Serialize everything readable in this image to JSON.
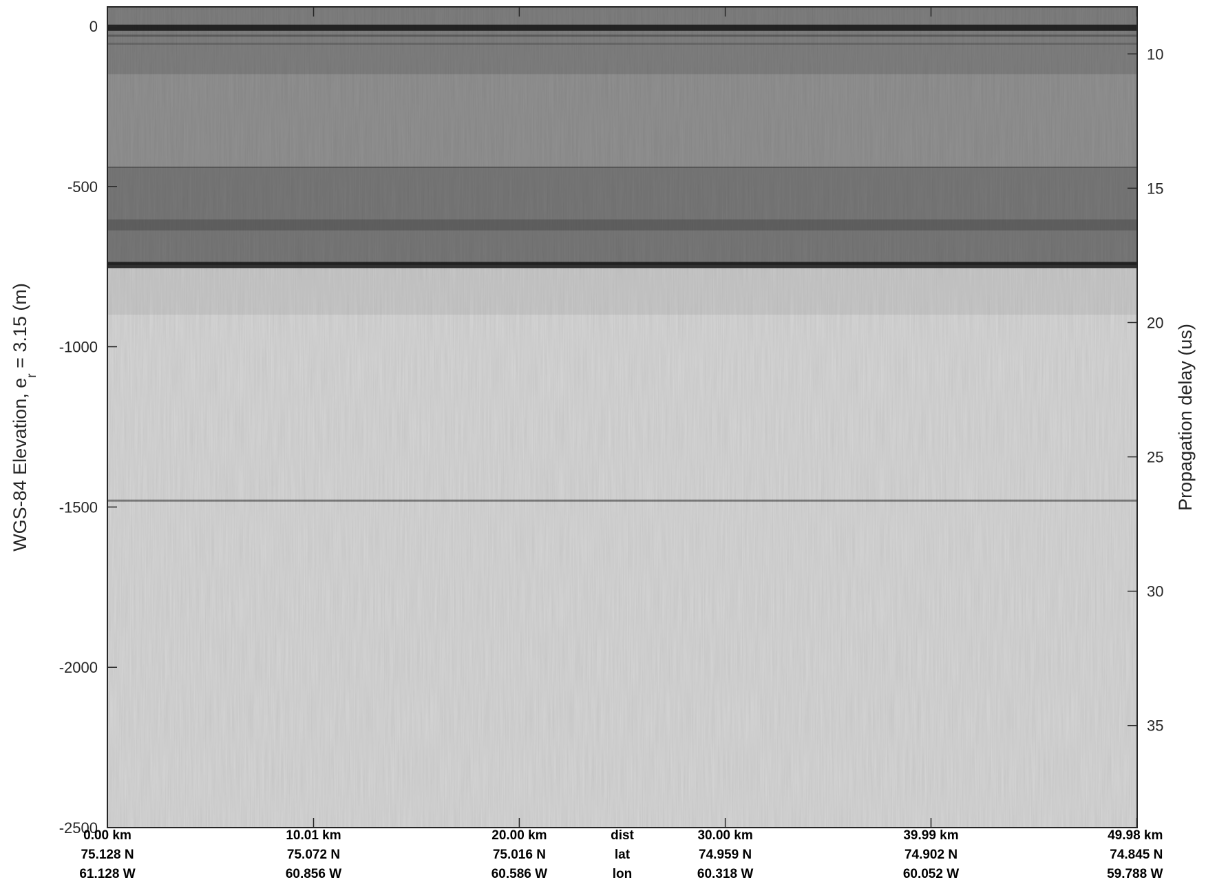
{
  "chart_data": {
    "type": "heatmap",
    "title": "",
    "ylabel_left": {
      "main": "WGS-84 Elevation, e",
      "sub": "r",
      "tail": " = 3.15 (m)"
    },
    "ylabel_right": "Propagation delay (us)",
    "ylim_left": [
      -2500,
      60
    ],
    "left_ticks": [
      0,
      -500,
      -1000,
      -1500,
      -2000,
      -2500
    ],
    "left_tick_labels": [
      "0",
      "-500",
      "-1000",
      "-1500",
      "-2000",
      "-2500"
    ],
    "right_ticks": [
      10,
      15,
      20,
      25,
      30,
      35
    ],
    "right_tick_labels": [
      "10",
      "15",
      "20",
      "25",
      "30",
      "35"
    ],
    "right_range_us": [
      8.25,
      38.8
    ],
    "x_positions_km": [
      0.0,
      10.01,
      20.0,
      30.0,
      39.99,
      49.98
    ],
    "xlim_km": [
      0,
      50
    ],
    "bottom_columns": [
      {
        "dist": "0.00 km",
        "lat": "75.128 N",
        "lon": "61.128 W"
      },
      {
        "dist": "10.01 km",
        "lat": "75.072 N",
        "lon": "60.856 W"
      },
      {
        "dist": "20.00 km",
        "lat": "75.016 N",
        "lon": "60.586 W"
      },
      {
        "dist": "30.00 km",
        "lat": "74.959 N",
        "lon": "60.318 W"
      },
      {
        "dist": "39.99 km",
        "lat": "74.902 N",
        "lon": "60.052 W"
      },
      {
        "dist": "49.98 km",
        "lat": "74.845 N",
        "lon": "59.788 W"
      }
    ],
    "row_labels": [
      "dist",
      "lat",
      "lon"
    ],
    "row_labels_after_column": 2,
    "layers": [
      {
        "name": "surface",
        "elevation_m": -5,
        "strength": "strong"
      },
      {
        "name": "layer",
        "elevation_m": -440,
        "strength": "transition"
      },
      {
        "name": "layer",
        "elevation_m": -620,
        "strength": "moderate"
      },
      {
        "name": "layer",
        "elevation_m": -745,
        "strength": "strong"
      },
      {
        "name": "layer",
        "elevation_m": -1480,
        "strength": "faint"
      }
    ],
    "colormap": "gray",
    "grid": false
  }
}
